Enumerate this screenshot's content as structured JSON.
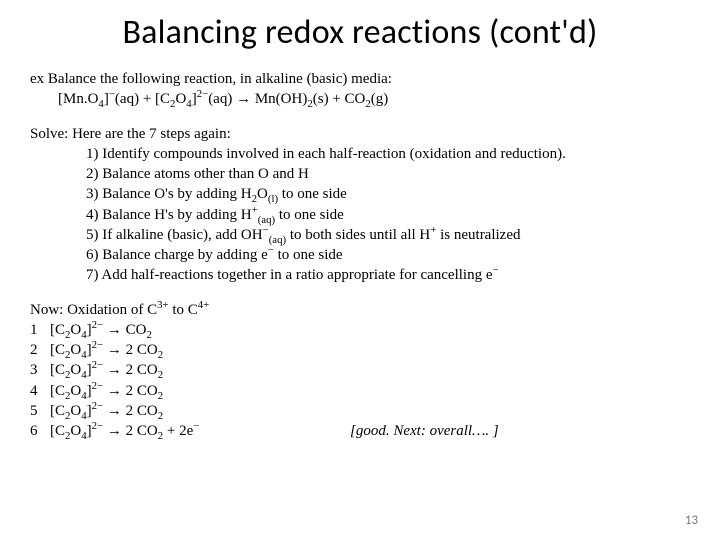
{
  "title": "Balancing redox reactions (cont'd)",
  "example": {
    "lead": "ex   Balance the following reaction, in alkaline (basic) media:",
    "equation_html": "[Mn.O<sub>4</sub>]<sup>−</sup>(aq) + [C<sub>2</sub>O<sub>4</sub>]<sup>2−</sup>(aq) → Mn(OH)<sub>2</sub>(s) + CO<sub>2</sub>(g)"
  },
  "solve": {
    "lead": "Solve:  Here are the 7 steps again:",
    "steps_html": [
      "1) Identify compounds involved in each half-reaction (oxidation and reduction).",
      "2) Balance atoms other than O and H",
      "3) Balance O's by adding H<sub>2</sub>O<sub>(l)</sub> to one side",
      "4) Balance H's by adding H<sup>+</sup><sub>(aq)</sub> to one side",
      "5) If alkaline (basic), add OH<sup>−</sup><sub>(aq)</sub> to both sides until all H<sup>+</sup> is neutralized",
      "6) Balance charge by adding e<sup>−</sup> to one side",
      "7) Add half-reactions together in a ratio appropriate for cancelling e<sup>−</sup>"
    ]
  },
  "now": {
    "lead_html": "Now: Oxidation of C<sup>3+</sup> to C<sup>4+</sup>",
    "rows_html": [
      {
        "n": "1",
        "eq": "[C<sub>2</sub>O<sub>4</sub>]<sup>2−</sup>  →  CO<sub>2</sub>"
      },
      {
        "n": "2",
        "eq": "[C<sub>2</sub>O<sub>4</sub>]<sup>2−</sup>  →  2 CO<sub>2</sub>"
      },
      {
        "n": "3",
        "eq": "[C<sub>2</sub>O<sub>4</sub>]<sup>2−</sup>  →  2 CO<sub>2</sub>"
      },
      {
        "n": "4",
        "eq": "[C<sub>2</sub>O<sub>4</sub>]<sup>2−</sup>  →  2 CO<sub>2</sub>"
      },
      {
        "n": "5",
        "eq": "[C<sub>2</sub>O<sub>4</sub>]<sup>2−</sup>  →  2 CO<sub>2</sub>"
      },
      {
        "n": "6",
        "eq": "[C<sub>2</sub>O<sub>4</sub>]<sup>2−</sup>  →  2 CO<sub>2</sub> + 2e<sup>−</sup>"
      }
    ],
    "note": "[good.  Next: overall…. ]"
  },
  "page_number": "13",
  "style": {
    "title_font": "Calibri",
    "title_size_pt": 34,
    "body_font": "Times New Roman",
    "body_size_pt": 15,
    "text_color": "#000000",
    "bg_color": "#ffffff",
    "page_num_color": "#7a7a7a"
  }
}
